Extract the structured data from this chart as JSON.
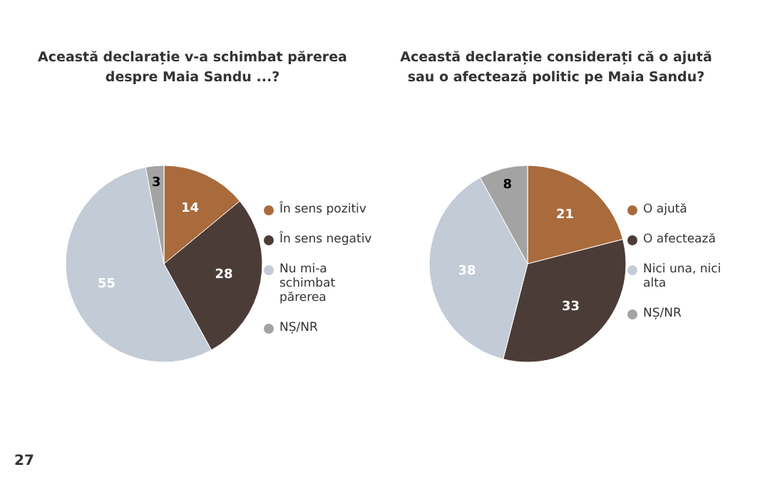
{
  "chart_data": [
    {
      "type": "pie",
      "title": "Această declarație v-a schimbat părerea despre Maia Sandu ...?",
      "categories": [
        "În sens pozitiv",
        "În sens negativ",
        "Nu mi-a schimbat părerea",
        "NȘ/NR"
      ],
      "values": [
        14,
        28,
        55,
        3
      ],
      "colors": [
        "#a96b3c",
        "#4c3c37",
        "#c3cbd6",
        "#a3a3a3"
      ],
      "data_labels": true,
      "legend": "right",
      "annotations": [
        "27"
      ]
    },
    {
      "type": "pie",
      "title": "Această declarație considerați că o ajută sau o afectează politic pe Maia Sandu?",
      "categories": [
        "O ajută",
        "O afectează",
        "Nici una, nici alta",
        "NȘ/NR"
      ],
      "values": [
        21,
        33,
        38,
        8
      ],
      "colors": [
        "#a96b3c",
        "#4c3c37",
        "#c3cbd6",
        "#a3a3a3"
      ],
      "data_labels": true,
      "legend": "right"
    }
  ]
}
